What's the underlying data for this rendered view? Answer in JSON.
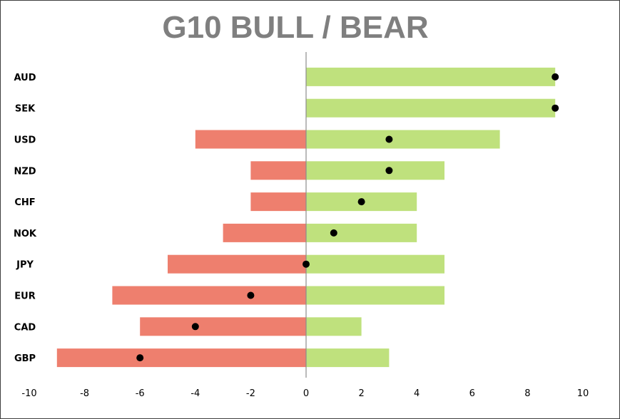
{
  "chart_data": {
    "type": "bar",
    "title": "G10 BULL / BEAR",
    "xlabel": "",
    "ylabel": "",
    "xlim": [
      -10,
      10
    ],
    "xticks": [
      -10,
      -8,
      -6,
      -4,
      -2,
      0,
      2,
      4,
      6,
      8,
      10
    ],
    "xtick_labels": [
      "-10",
      "-8",
      "-6",
      "-4",
      "-2",
      "0",
      "2",
      "4",
      "6",
      "8",
      "10"
    ],
    "grid": false,
    "legend": "none",
    "orientation": "horizontal",
    "categories": [
      "AUD",
      "SEK",
      "USD",
      "NZD",
      "CHF",
      "NOK",
      "JPY",
      "EUR",
      "CAD",
      "GBP"
    ],
    "series": [
      {
        "type": "bar",
        "color": "#ee7f6e",
        "values": [
          0,
          0,
          -4,
          -2,
          -2,
          -3,
          -5,
          -7,
          -6,
          -9
        ]
      },
      {
        "type": "bar",
        "color": "#bfe17d",
        "values": [
          9,
          9,
          7,
          5,
          4,
          4,
          5,
          5,
          2,
          3
        ]
      },
      {
        "type": "scatter",
        "color": "#000000",
        "values": [
          9,
          9,
          3,
          3,
          2,
          1,
          0,
          -2,
          -4,
          -6
        ]
      }
    ]
  }
}
